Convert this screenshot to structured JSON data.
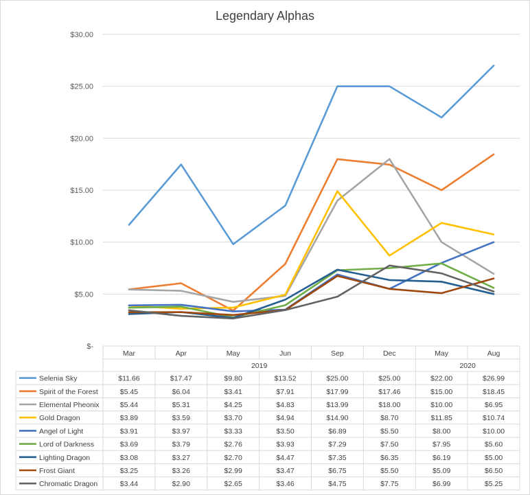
{
  "chart_data": {
    "type": "line",
    "title": "Legendary Alphas",
    "categories": [
      "Mar",
      "Apr",
      "May",
      "Jun",
      "Sep",
      "Dec",
      "May",
      "Aug"
    ],
    "groups": [
      {
        "label": "2019",
        "count": 6
      },
      {
        "label": "2020",
        "count": 2
      }
    ],
    "y_ticks": [
      "$-",
      "$5.00",
      "$10.00",
      "$15.00",
      "$20.00",
      "$25.00",
      "$30.00"
    ],
    "ylim": [
      0,
      30
    ],
    "grid": true,
    "legend": "data-table",
    "series": [
      {
        "name": "Selenia Sky",
        "color": "#5b9bd5",
        "values": [
          11.66,
          17.47,
          9.8,
          13.52,
          25.0,
          25.0,
          22.0,
          26.99
        ],
        "labels": [
          "$11.66",
          "$17.47",
          "$9.80",
          "$13.52",
          "$25.00",
          "$25.00",
          "$22.00",
          "$26.99"
        ]
      },
      {
        "name": "Spirit of the Forest",
        "color": "#ed7d31",
        "values": [
          5.45,
          6.04,
          3.41,
          7.91,
          17.99,
          17.46,
          15.0,
          18.45
        ],
        "labels": [
          "$5.45",
          "$6.04",
          "$3.41",
          "$7.91",
          "$17.99",
          "$17.46",
          "$15.00",
          "$18.45"
        ]
      },
      {
        "name": "Elemental Pheonix",
        "color": "#a5a5a5",
        "values": [
          5.44,
          5.31,
          4.25,
          4.83,
          13.99,
          18.0,
          10.0,
          6.95
        ],
        "labels": [
          "$5.44",
          "$5.31",
          "$4.25",
          "$4.83",
          "$13.99",
          "$18.00",
          "$10.00",
          "$6.95"
        ]
      },
      {
        "name": "Gold Dragon",
        "color": "#ffc000",
        "values": [
          3.89,
          3.59,
          3.7,
          4.94,
          14.9,
          8.7,
          11.85,
          10.74
        ],
        "labels": [
          "$3.89",
          "$3.59",
          "$3.70",
          "$4.94",
          "$14.90",
          "$8.70",
          "$11.85",
          "$10.74"
        ]
      },
      {
        "name": "Angel of Light",
        "color": "#4472c4",
        "values": [
          3.91,
          3.97,
          3.33,
          3.5,
          6.89,
          5.5,
          8.0,
          10.0
        ],
        "labels": [
          "$3.91",
          "$3.97",
          "$3.33",
          "$3.50",
          "$6.89",
          "$5.50",
          "$8.00",
          "$10.00"
        ]
      },
      {
        "name": "Lord of Darkness",
        "color": "#70ad47",
        "values": [
          3.69,
          3.79,
          2.76,
          3.93,
          7.29,
          7.5,
          7.95,
          5.6
        ],
        "labels": [
          "$3.69",
          "$3.79",
          "$2.76",
          "$3.93",
          "$7.29",
          "$7.50",
          "$7.95",
          "$5.60"
        ]
      },
      {
        "name": "Lighting Dragon",
        "color": "#255e91",
        "values": [
          3.08,
          3.27,
          2.7,
          4.47,
          7.35,
          6.35,
          6.19,
          5.0
        ],
        "labels": [
          "$3.08",
          "$3.27",
          "$2.70",
          "$4.47",
          "$7.35",
          "$6.35",
          "$6.19",
          "$5.00"
        ]
      },
      {
        "name": "Frost Giant",
        "color": "#9e480e",
        "values": [
          3.25,
          3.26,
          2.99,
          3.47,
          6.75,
          5.5,
          5.09,
          6.5
        ],
        "labels": [
          "$3.25",
          "$3.26",
          "$2.99",
          "$3.47",
          "$6.75",
          "$5.50",
          "$5.09",
          "$6.50"
        ]
      },
      {
        "name": "Chromatic Dragon",
        "color": "#636363",
        "values": [
          3.44,
          2.9,
          2.65,
          3.46,
          4.75,
          7.75,
          6.99,
          5.25
        ],
        "labels": [
          "$3.44",
          "$2.90",
          "$2.65",
          "$3.46",
          "$4.75",
          "$7.75",
          "$6.99",
          "$5.25"
        ]
      }
    ]
  }
}
